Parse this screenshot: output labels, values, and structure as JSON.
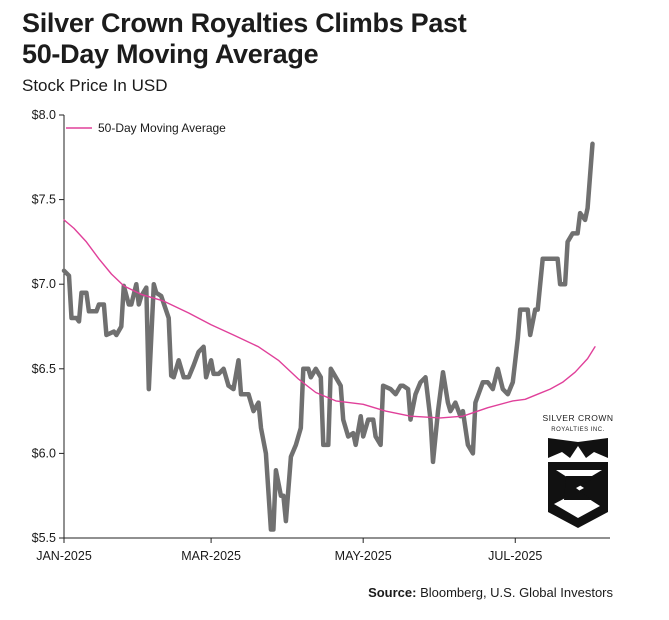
{
  "header": {
    "title_line1": "Silver Crown Royalties Climbs Past",
    "title_line2": "50-Day Moving Average",
    "subtitle": "Stock Price In USD"
  },
  "footer": {
    "source_label": "Source:",
    "source_text": " Bloomberg, U.S. Global Investors"
  },
  "logo": {
    "line1": "SILVER CROWN",
    "line2": "ROYALTIES INC.",
    "icon": "crown-shield-s-logo"
  },
  "colors": {
    "price": "#707070",
    "moving_average": "#e0409a",
    "axis": "#222222"
  },
  "chart_data": {
    "type": "line",
    "title": "Silver Crown Royalties Climbs Past 50-Day Moving Average",
    "ylabel": "Stock Price In USD",
    "xlabel": "",
    "ylim": [
      5.5,
      8.0
    ],
    "xlim": [
      "2025-01-01",
      "2025-08-08"
    ],
    "y_ticks": [
      5.5,
      6.0,
      6.5,
      7.0,
      7.5,
      8.0
    ],
    "y_tick_labels": [
      "$5.5",
      "$6.0",
      "$6.5",
      "$7.0",
      "$7.5",
      "$8.0"
    ],
    "x_ticks": [
      "2025-01-01",
      "2025-03-01",
      "2025-05-01",
      "2025-07-01"
    ],
    "x_tick_labels": [
      "JAN-2025",
      "MAR-2025",
      "MAY-2025",
      "JUL-2025"
    ],
    "grid": false,
    "legend_position": "top-left",
    "series": [
      {
        "name": "",
        "points": [
          [
            "2025-01-01",
            7.08
          ],
          [
            "2025-01-03",
            7.05
          ],
          [
            "2025-01-04",
            6.8
          ],
          [
            "2025-01-06",
            6.8
          ],
          [
            "2025-01-07",
            6.78
          ],
          [
            "2025-01-08",
            6.95
          ],
          [
            "2025-01-10",
            6.95
          ],
          [
            "2025-01-11",
            6.84
          ],
          [
            "2025-01-14",
            6.84
          ],
          [
            "2025-01-15",
            6.88
          ],
          [
            "2025-01-17",
            6.88
          ],
          [
            "2025-01-18",
            6.7
          ],
          [
            "2025-01-21",
            6.72
          ],
          [
            "2025-01-22",
            6.7
          ],
          [
            "2025-01-24",
            6.75
          ],
          [
            "2025-01-25",
            6.99
          ],
          [
            "2025-01-27",
            6.88
          ],
          [
            "2025-01-28",
            6.88
          ],
          [
            "2025-01-30",
            7.0
          ],
          [
            "2025-01-31",
            6.88
          ],
          [
            "2025-02-01",
            6.93
          ],
          [
            "2025-02-03",
            6.98
          ],
          [
            "2025-02-04",
            6.38
          ],
          [
            "2025-02-06",
            7.0
          ],
          [
            "2025-02-07",
            6.95
          ],
          [
            "2025-02-09",
            6.93
          ],
          [
            "2025-02-12",
            6.8
          ],
          [
            "2025-02-13",
            6.46
          ],
          [
            "2025-02-14",
            6.45
          ],
          [
            "2025-02-16",
            6.55
          ],
          [
            "2025-02-18",
            6.45
          ],
          [
            "2025-02-20",
            6.45
          ],
          [
            "2025-02-22",
            6.52
          ],
          [
            "2025-02-24",
            6.6
          ],
          [
            "2025-02-26",
            6.63
          ],
          [
            "2025-02-27",
            6.45
          ],
          [
            "2025-03-01",
            6.55
          ],
          [
            "2025-03-02",
            6.47
          ],
          [
            "2025-03-04",
            6.47
          ],
          [
            "2025-03-06",
            6.5
          ],
          [
            "2025-03-08",
            6.4
          ],
          [
            "2025-03-10",
            6.38
          ],
          [
            "2025-03-12",
            6.55
          ],
          [
            "2025-03-13",
            6.35
          ],
          [
            "2025-03-16",
            6.35
          ],
          [
            "2025-03-18",
            6.25
          ],
          [
            "2025-03-20",
            6.3
          ],
          [
            "2025-03-21",
            6.15
          ],
          [
            "2025-03-23",
            6.0
          ],
          [
            "2025-03-25",
            5.55
          ],
          [
            "2025-03-26",
            5.55
          ],
          [
            "2025-03-27",
            5.9
          ],
          [
            "2025-03-29",
            5.75
          ],
          [
            "2025-03-30",
            5.75
          ],
          [
            "2025-03-31",
            5.6
          ],
          [
            "2025-04-02",
            5.98
          ],
          [
            "2025-04-04",
            6.05
          ],
          [
            "2025-04-06",
            6.15
          ],
          [
            "2025-04-07",
            6.5
          ],
          [
            "2025-04-09",
            6.5
          ],
          [
            "2025-04-10",
            6.45
          ],
          [
            "2025-04-12",
            6.5
          ],
          [
            "2025-04-14",
            6.45
          ],
          [
            "2025-04-15",
            6.05
          ],
          [
            "2025-04-17",
            6.05
          ],
          [
            "2025-04-18",
            6.5
          ],
          [
            "2025-04-20",
            6.45
          ],
          [
            "2025-04-22",
            6.4
          ],
          [
            "2025-04-23",
            6.2
          ],
          [
            "2025-04-25",
            6.1
          ],
          [
            "2025-04-27",
            6.12
          ],
          [
            "2025-04-28",
            6.05
          ],
          [
            "2025-04-30",
            6.22
          ],
          [
            "2025-05-01",
            6.1
          ],
          [
            "2025-05-03",
            6.2
          ],
          [
            "2025-05-05",
            6.2
          ],
          [
            "2025-05-06",
            6.1
          ],
          [
            "2025-05-08",
            6.05
          ],
          [
            "2025-05-09",
            6.4
          ],
          [
            "2025-05-12",
            6.38
          ],
          [
            "2025-05-14",
            6.35
          ],
          [
            "2025-05-16",
            6.4
          ],
          [
            "2025-05-17",
            6.4
          ],
          [
            "2025-05-19",
            6.38
          ],
          [
            "2025-05-20",
            6.2
          ],
          [
            "2025-05-22",
            6.35
          ],
          [
            "2025-05-24",
            6.42
          ],
          [
            "2025-05-26",
            6.45
          ],
          [
            "2025-05-28",
            6.2
          ],
          [
            "2025-05-29",
            5.95
          ],
          [
            "2025-05-31",
            6.25
          ],
          [
            "2025-06-02",
            6.48
          ],
          [
            "2025-06-04",
            6.3
          ],
          [
            "2025-06-05",
            6.25
          ],
          [
            "2025-06-07",
            6.3
          ],
          [
            "2025-06-09",
            6.22
          ],
          [
            "2025-06-10",
            6.25
          ],
          [
            "2025-06-12",
            6.05
          ],
          [
            "2025-06-14",
            6.0
          ],
          [
            "2025-06-15",
            6.3
          ],
          [
            "2025-06-18",
            6.42
          ],
          [
            "2025-06-20",
            6.42
          ],
          [
            "2025-06-22",
            6.38
          ],
          [
            "2025-06-24",
            6.5
          ],
          [
            "2025-06-26",
            6.38
          ],
          [
            "2025-06-28",
            6.35
          ],
          [
            "2025-06-30",
            6.42
          ],
          [
            "2025-07-02",
            6.68
          ],
          [
            "2025-07-03",
            6.85
          ],
          [
            "2025-07-06",
            6.85
          ],
          [
            "2025-07-07",
            6.7
          ],
          [
            "2025-07-09",
            6.85
          ],
          [
            "2025-07-10",
            6.85
          ],
          [
            "2025-07-12",
            7.15
          ],
          [
            "2025-07-15",
            7.15
          ],
          [
            "2025-07-18",
            7.15
          ],
          [
            "2025-07-19",
            7.0
          ],
          [
            "2025-07-21",
            7.0
          ],
          [
            "2025-07-22",
            7.25
          ],
          [
            "2025-07-24",
            7.3
          ],
          [
            "2025-07-26",
            7.3
          ],
          [
            "2025-07-27",
            7.42
          ],
          [
            "2025-07-29",
            7.38
          ],
          [
            "2025-07-30",
            7.45
          ],
          [
            "2025-08-01",
            7.83
          ]
        ]
      },
      {
        "name": "50-Day Moving Average",
        "points": [
          [
            "2025-01-01",
            7.38
          ],
          [
            "2025-01-05",
            7.33
          ],
          [
            "2025-01-10",
            7.25
          ],
          [
            "2025-01-15",
            7.15
          ],
          [
            "2025-01-20",
            7.06
          ],
          [
            "2025-01-25",
            6.99
          ],
          [
            "2025-02-01",
            6.94
          ],
          [
            "2025-02-10",
            6.9
          ],
          [
            "2025-02-20",
            6.83
          ],
          [
            "2025-03-01",
            6.76
          ],
          [
            "2025-03-10",
            6.7
          ],
          [
            "2025-03-20",
            6.63
          ],
          [
            "2025-03-28",
            6.55
          ],
          [
            "2025-04-05",
            6.44
          ],
          [
            "2025-04-12",
            6.36
          ],
          [
            "2025-04-20",
            6.31
          ],
          [
            "2025-05-01",
            6.29
          ],
          [
            "2025-05-10",
            6.25
          ],
          [
            "2025-05-20",
            6.22
          ],
          [
            "2025-06-01",
            6.21
          ],
          [
            "2025-06-10",
            6.22
          ],
          [
            "2025-06-20",
            6.27
          ],
          [
            "2025-06-30",
            6.31
          ],
          [
            "2025-07-05",
            6.32
          ],
          [
            "2025-07-10",
            6.35
          ],
          [
            "2025-07-15",
            6.38
          ],
          [
            "2025-07-20",
            6.42
          ],
          [
            "2025-07-25",
            6.48
          ],
          [
            "2025-07-30",
            6.56
          ],
          [
            "2025-08-02",
            6.63
          ]
        ]
      }
    ]
  }
}
